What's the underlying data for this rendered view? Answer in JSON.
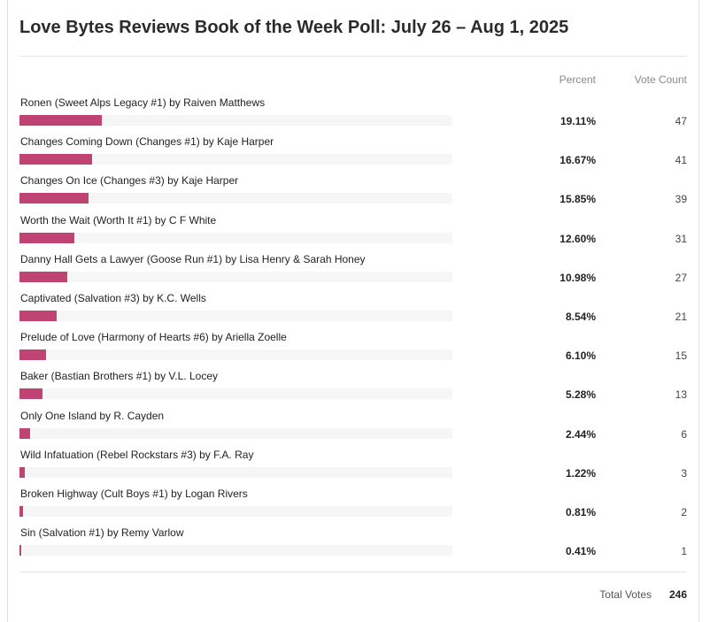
{
  "poll": {
    "title": "Love Bytes Reviews Book of the Week Poll: July 26 – Aug 1, 2025",
    "percent_header": "Percent",
    "count_header": "Vote Count",
    "total_label": "Total Votes",
    "total_value": "246"
  },
  "chart_data": {
    "type": "bar",
    "orientation": "horizontal",
    "title": "Love Bytes Reviews Book of the Week Poll: July 26 – Aug 1, 2025",
    "bar_color": "#bf4473",
    "track_color": "#f6f6f6",
    "categories": [
      "Ronen (Sweet Alps Legacy #1) by Raiven Matthews",
      "Changes Coming Down (Changes #1) by Kaje Harper",
      "Changes On Ice (Changes #3) by Kaje Harper",
      "Worth the Wait (Worth It #1) by C F White",
      "Danny Hall Gets a Lawyer (Goose Run #1) by Lisa Henry & Sarah Honey",
      "Captivated (Salvation #3) by K.C. Wells",
      "Prelude of Love (Harmony of Hearts #6) by Ariella Zoelle",
      "Baker (Bastian Brothers #1) by V.L. Locey",
      "Only One Island by R. Cayden",
      "Wild Infatuation (Rebel Rockstars #3) by F.A. Ray",
      "Broken Highway (Cult Boys #1) by Logan Rivers",
      "Sin (Salvation #1) by Remy Varlow"
    ],
    "percent_labels": [
      "19.11%",
      "16.67%",
      "15.85%",
      "12.60%",
      "10.98%",
      "8.54%",
      "6.10%",
      "5.28%",
      "2.44%",
      "1.22%",
      "0.81%",
      "0.41%"
    ],
    "values": [
      19.11,
      16.67,
      15.85,
      12.6,
      10.98,
      8.54,
      6.1,
      5.28,
      2.44,
      1.22,
      0.81,
      0.41
    ],
    "counts": [
      "47",
      "41",
      "39",
      "31",
      "27",
      "21",
      "15",
      "13",
      "6",
      "3",
      "2",
      "1"
    ],
    "xlim": [
      0,
      100
    ]
  }
}
